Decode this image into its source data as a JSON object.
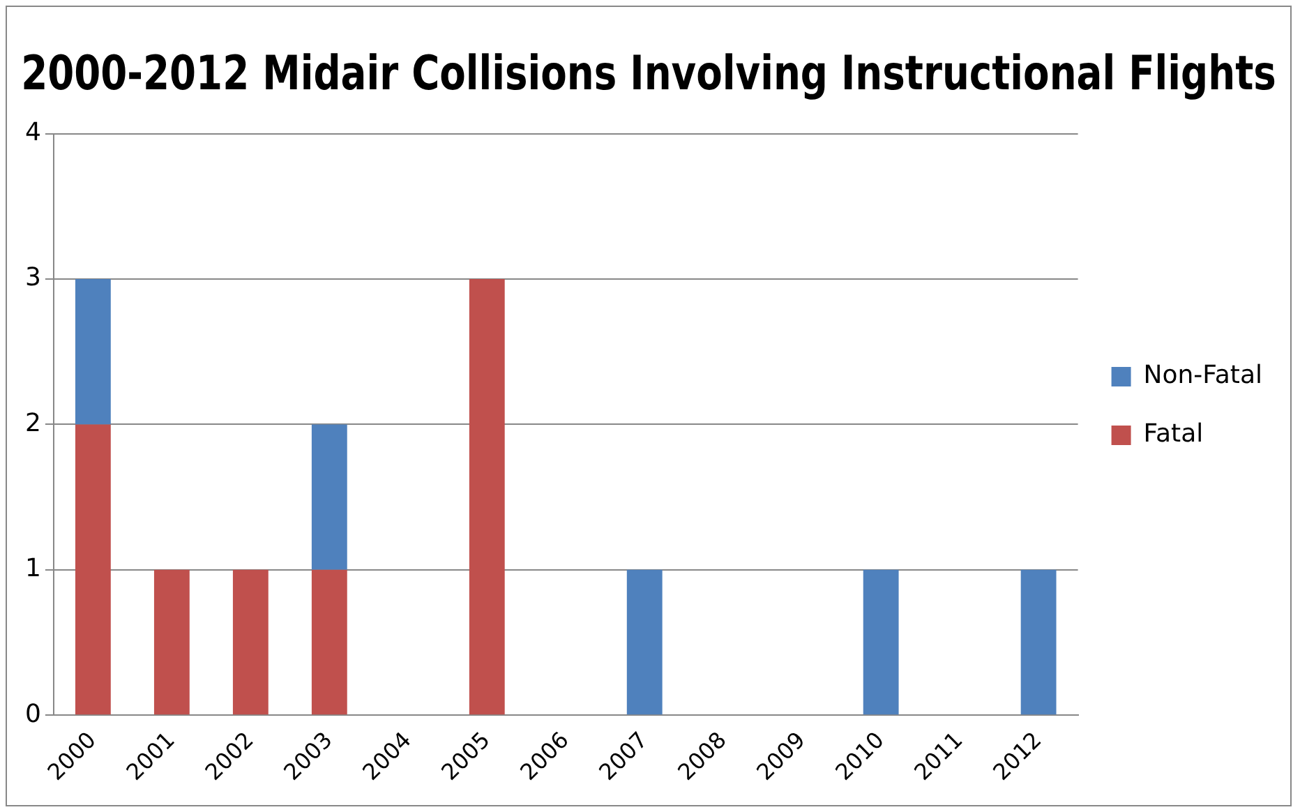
{
  "chart_data": {
    "type": "bar",
    "title": "2000-2012 Midair Collisions Involving Instructional Flights",
    "categories": [
      "2000",
      "2001",
      "2002",
      "2003",
      "2004",
      "2005",
      "2006",
      "2007",
      "2008",
      "2009",
      "2010",
      "2011",
      "2012"
    ],
    "series": [
      {
        "name": "Fatal",
        "color": "#c0504d",
        "values": [
          2,
          1,
          1,
          1,
          0,
          3,
          0,
          0,
          0,
          0,
          0,
          0,
          0
        ]
      },
      {
        "name": "Non-Fatal",
        "color": "#4f81bd",
        "values": [
          1,
          0,
          0,
          1,
          0,
          0,
          0,
          1,
          0,
          0,
          1,
          0,
          1
        ]
      }
    ],
    "stacked": true,
    "ylim": [
      0,
      4
    ],
    "yticks": [
      0,
      1,
      2,
      3,
      4
    ],
    "grid": "y",
    "legend": "right"
  }
}
